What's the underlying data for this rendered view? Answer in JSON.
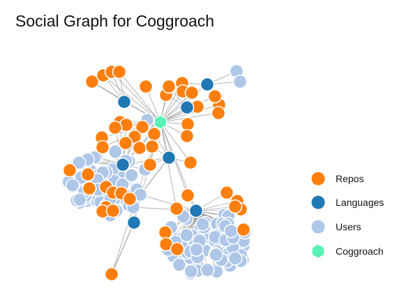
{
  "title": "Social Graph for Coggroach",
  "colors": {
    "repo": "#ff7f0e",
    "language": "#1f77b4",
    "user": "#aec7e8",
    "center": "#5af2b4",
    "link": "#999999",
    "node_stroke": "#ffffff"
  },
  "legend": {
    "items": [
      {
        "label": "Repos",
        "color": "#ff7f0e",
        "shape": "circle"
      },
      {
        "label": "Languages",
        "color": "#1f77b4",
        "shape": "circle"
      },
      {
        "label": "Users",
        "color": "#aec7e8",
        "shape": "circle"
      },
      {
        "label": "Coggroach",
        "color": "#5af2b4",
        "shape": "hexagon"
      }
    ]
  }
}
